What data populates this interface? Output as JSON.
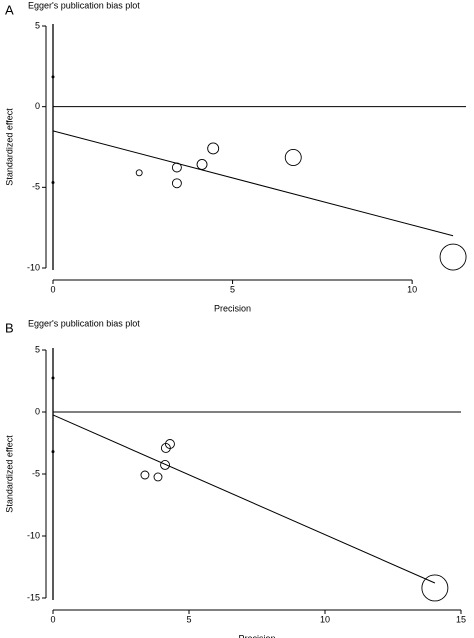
{
  "chart_data": [
    {
      "type": "scatter",
      "panel_label": "A",
      "title": "Egger's publication bias plot",
      "x_label": "Precision",
      "y_label": "Standardized effect",
      "xlim": [
        0,
        11.5
      ],
      "ylim": [
        -10,
        5
      ],
      "xticks": [
        0,
        5,
        10
      ],
      "yticks": [
        5,
        0,
        -5,
        -10
      ],
      "color": "#000000",
      "x": [
        2.4,
        3.45,
        3.45,
        4.15,
        4.46,
        6.69,
        11.14
      ],
      "values": [
        -4.1,
        -3.77,
        -4.75,
        -3.58,
        -2.59,
        -3.15,
        -9.32
      ],
      "sizes": [
        3,
        4.5,
        4.5,
        5,
        5.5,
        8,
        13
      ],
      "fit": {
        "x": [
          0,
          11.14
        ],
        "values": [
          -1.5,
          -8.0
        ]
      },
      "intercept_ci": {
        "x": [
          0,
          0
        ],
        "values": [
          1.85,
          -4.7
        ]
      }
    },
    {
      "type": "scatter",
      "panel_label": "B",
      "title": "Egger's publication bias plot",
      "x_label": "Precision",
      "y_label": "Standardized effect",
      "xlim": [
        0,
        15
      ],
      "ylim": [
        -15,
        5
      ],
      "xticks": [
        0,
        5,
        10,
        15
      ],
      "yticks": [
        5,
        0,
        -5,
        -10,
        -15
      ],
      "color": "#000000",
      "x": [
        3.38,
        3.86,
        4.12,
        4.15,
        4.3,
        14.04
      ],
      "values": [
        -5.08,
        -5.24,
        -4.27,
        -2.9,
        -2.58,
        -14.19
      ],
      "sizes": [
        4,
        4,
        4.5,
        4.5,
        4.5,
        13
      ],
      "fit": {
        "x": [
          0,
          14.04
        ],
        "values": [
          -0.24,
          -13.79
        ]
      },
      "intercept_ci": {
        "x": [
          0,
          0
        ],
        "values": [
          2.74,
          -3.2
        ]
      }
    }
  ]
}
